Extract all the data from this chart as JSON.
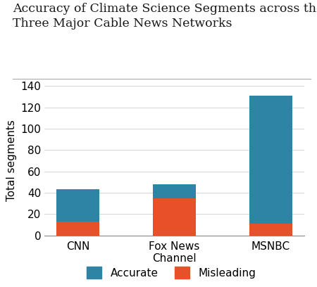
{
  "categories": [
    "CNN",
    "Fox News\nChannel",
    "MSNBC"
  ],
  "accurate": [
    30,
    13,
    120
  ],
  "misleading": [
    13,
    35,
    11
  ],
  "accurate_color": "#2e84a5",
  "misleading_color": "#e8502a",
  "title_line1": "Accuracy of Climate Science Segments across the",
  "title_line2": "Three Major Cable News Networks",
  "ylabel": "Total segments",
  "ylim": [
    0,
    140
  ],
  "yticks": [
    0,
    20,
    40,
    60,
    80,
    100,
    120,
    140
  ],
  "legend_labels": [
    "Accurate",
    "Misleading"
  ],
  "title_color": "#1a1a1a",
  "separator_color": "#aaaaaa",
  "background_color": "#ffffff",
  "bar_width": 0.45,
  "title_fontsize": 12.5,
  "axis_fontsize": 11,
  "legend_fontsize": 11
}
